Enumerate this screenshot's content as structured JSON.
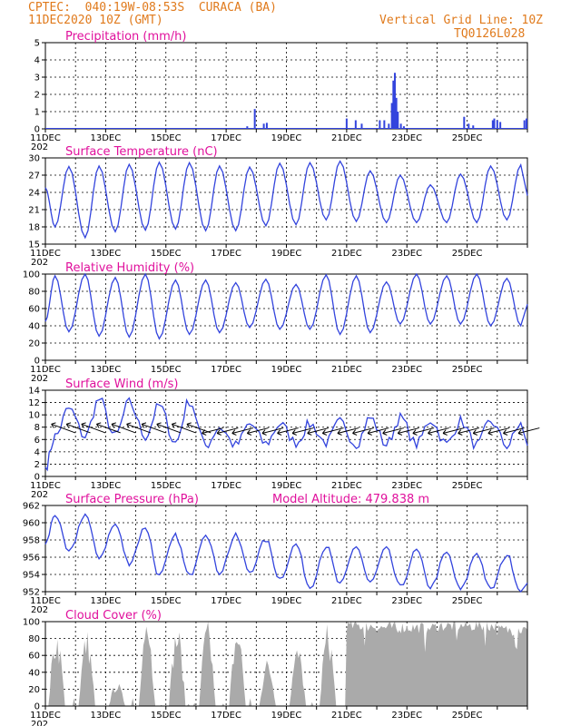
{
  "header": {
    "line1": "CPTEC:  040:19W-08:53S  CURACA (BA)",
    "line2": "11DEC2020 10Z (GMT)",
    "right1": "Vertical Grid Line: 10Z",
    "right2": "TQ0126L028"
  },
  "x_axis": {
    "labels": [
      "11DEC",
      "13DEC",
      "15DEC",
      "17DEC",
      "19DEC",
      "21DEC",
      "23DEC",
      "25DEC"
    ],
    "label_days": [
      0,
      2,
      4,
      6,
      8,
      10,
      12,
      14
    ],
    "range_days": [
      0,
      16
    ],
    "year_stub": "202"
  },
  "colors": {
    "line": "#3344dd",
    "cloud": "#aaaaaa",
    "title": "#e0109c",
    "header": "#e07a1c"
  },
  "chart_data": [
    {
      "type": "bar",
      "title": "Precipitation (mm/h)",
      "ylim": [
        0,
        5
      ],
      "yticks": [
        "0",
        "1",
        "2",
        "3",
        "4",
        "5"
      ],
      "x_days": [
        6.7,
        6.95,
        7.25,
        7.35,
        10.0,
        10.3,
        10.5,
        11.1,
        11.25,
        11.4,
        11.5,
        11.55,
        11.6,
        11.65,
        11.7,
        11.8,
        11.9,
        13.9,
        14.05,
        14.2,
        14.85,
        14.9,
        15.0,
        15.1,
        15.9,
        15.97
      ],
      "values": [
        0.15,
        1.15,
        0.3,
        0.35,
        0.6,
        0.5,
        0.3,
        0.5,
        0.5,
        0.3,
        1.5,
        2.8,
        3.25,
        1.8,
        1.0,
        0.3,
        0.15,
        0.7,
        0.3,
        0.2,
        0.5,
        0.6,
        0.5,
        0.4,
        0.5,
        0.6
      ]
    },
    {
      "type": "line",
      "title": "Surface Temperature (nC)",
      "ylim": [
        15,
        31
      ],
      "yticks": [
        "15",
        "18",
        "21",
        "24",
        "27",
        "30"
      ],
      "series": [
        {
          "min": [
            18.2,
            16.2,
            17.3,
            17.6,
            17.8,
            17.5,
            17.5,
            18.4,
            18.6,
            19.5,
            19.2,
            19.0,
            19.0,
            19.0,
            19.0,
            19.5
          ],
          "max": [
            29.4,
            29.5,
            29.8,
            30.2,
            30.1,
            29.5,
            29.3,
            30.0,
            30.1,
            30.4,
            28.6,
            27.8,
            26.0,
            28.0,
            29.5,
            29.7
          ]
        }
      ]
    },
    {
      "type": "line",
      "title": "Relative Humidity (%)",
      "ylim": [
        0,
        100
      ],
      "yticks": [
        "0",
        "20",
        "40",
        "60",
        "80",
        "100"
      ],
      "series": [
        {
          "min": [
            33,
            28,
            27,
            25,
            30,
            32,
            38,
            36,
            36,
            30,
            32,
            42,
            42,
            42,
            40,
            40
          ],
          "max": [
            98,
            100,
            96,
            100,
            93,
            93,
            90,
            94,
            88,
            99,
            98,
            91,
            100,
            98,
            100,
            95
          ]
        }
      ]
    },
    {
      "type": "line",
      "title": "Surface Wind (m/s)",
      "ylim": [
        0,
        14
      ],
      "yticks": [
        "0",
        "2",
        "4",
        "6",
        "8",
        "10",
        "12",
        "14"
      ],
      "series": [
        {
          "min": [
            6.5,
            6.5,
            6.5,
            6.5,
            5.5,
            5.0,
            5.0,
            5.3,
            5.5,
            5.5,
            5.3,
            5.2,
            5.2,
            5.2,
            5.0,
            5.0
          ],
          "max": [
            11.0,
            12.5,
            12.0,
            11.5,
            12.3,
            8.0,
            8.5,
            8.5,
            8.5,
            8.8,
            9.5,
            9.5,
            9.2,
            9.0,
            9.0,
            8.5
          ]
        }
      ]
    },
    {
      "type": "line",
      "title": "Surface Pressure (hPa)",
      "subtitle": "Model Altitude: 479.838  m",
      "ylim": [
        952,
        962
      ],
      "yticks": [
        "952",
        "954",
        "956",
        "958",
        "960",
        "962"
      ],
      "series": [
        {
          "max": [
            961.0,
            961.0,
            959.8,
            959.5,
            958.5,
            958.8,
            958.5,
            958.0,
            957.5,
            957.3,
            957.3,
            957.0,
            956.8,
            956.5,
            956.5,
            956.3
          ],
          "min": [
            956.5,
            956.0,
            955.3,
            953.8,
            953.8,
            954.2,
            954.3,
            953.5,
            952.5,
            952.8,
            953.0,
            952.5,
            952.5,
            952.2,
            952.2,
            952.0
          ]
        }
      ]
    },
    {
      "type": "area",
      "title": "Cloud Cover (%)",
      "ylim": [
        0,
        100
      ],
      "yticks": [
        "0",
        "20",
        "40",
        "60",
        "80",
        "100"
      ],
      "peaks": [
        90,
        88,
        28,
        92,
        95,
        98,
        95,
        55,
        70,
        95,
        100,
        98,
        98,
        100,
        100,
        95
      ]
    }
  ]
}
